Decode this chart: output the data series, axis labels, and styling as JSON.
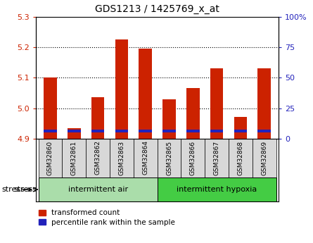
{
  "title": "GDS1213 / 1425769_x_at",
  "samples": [
    "GSM32860",
    "GSM32861",
    "GSM32862",
    "GSM32863",
    "GSM32864",
    "GSM32865",
    "GSM32866",
    "GSM32867",
    "GSM32868",
    "GSM32869"
  ],
  "red_values": [
    5.1,
    4.935,
    5.035,
    5.225,
    5.195,
    5.03,
    5.065,
    5.13,
    4.97,
    5.13
  ],
  "blue_pct": [
    8,
    10,
    9,
    10,
    10,
    9,
    9,
    10,
    9,
    10
  ],
  "ymin": 4.9,
  "ymax": 5.3,
  "y_ticks": [
    4.9,
    5.0,
    5.1,
    5.2,
    5.3
  ],
  "right_yticks": [
    0,
    25,
    50,
    75,
    100
  ],
  "right_ytick_labels": [
    "0",
    "25",
    "50",
    "75",
    "100%"
  ],
  "groups": [
    {
      "label": "intermittent air",
      "start": 0,
      "end": 5,
      "color": "#aaddaa"
    },
    {
      "label": "intermittent hypoxia",
      "start": 5,
      "end": 10,
      "color": "#44cc44"
    }
  ],
  "bar_color_red": "#cc2200",
  "bar_color_blue": "#2222bb",
  "bar_width": 0.55,
  "legend_labels": [
    "transformed count",
    "percentile rank within the sample"
  ],
  "stress_label": "stress",
  "sample_bg_color": "#d8d8d8",
  "tick_color_red": "#cc2200",
  "tick_color_blue": "#2222bb",
  "blue_bar_height": 0.011,
  "blue_bar_bottom": 4.919
}
